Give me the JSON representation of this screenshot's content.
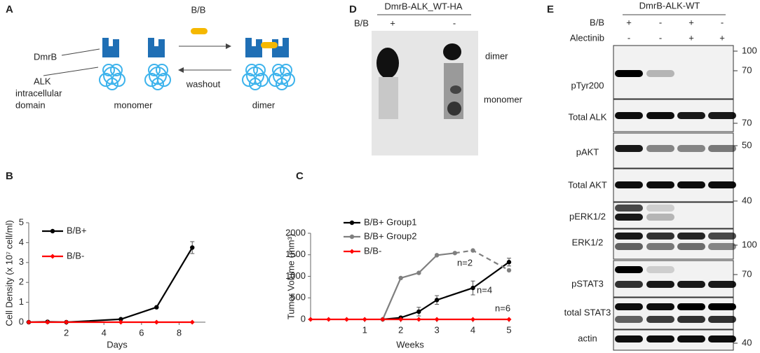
{
  "panel_a": {
    "letter": "A",
    "ligand": "B/B",
    "dmrb": "DmrB",
    "alk_lines": [
      "ALK",
      "intracellular",
      "domain"
    ],
    "monomer": "monomer",
    "washout": "washout",
    "dimer": "dimer"
  },
  "panel_d": {
    "letter": "D",
    "title": "DmrB-ALK_WT-HA",
    "row_label": "B/B",
    "lanes": [
      "+",
      "-"
    ],
    "bands": [
      "dimer",
      "monomer"
    ]
  },
  "panel_e": {
    "letter": "E",
    "title": "DmrB-ALK-WT",
    "conditions": [
      {
        "label": "B/B",
        "signs": [
          "+",
          "-",
          "+",
          "-"
        ]
      },
      {
        "label": "Alectinib",
        "signs": [
          "-",
          "-",
          "+",
          "+"
        ]
      }
    ],
    "blots": [
      "pTyr200",
      "Total ALK",
      "pAKT",
      "Total AKT",
      "pERK1/2",
      "ERK1/2",
      "pSTAT3",
      "total STAT3",
      "actin"
    ],
    "markers": [
      100,
      70,
      70,
      50,
      40,
      100,
      70,
      40
    ]
  },
  "chart_data": [
    {
      "type": "line",
      "panel": "B",
      "xlabel": "Days",
      "ylabel": "Cell Density  (x 10⁷ cell/ml)",
      "x": [
        0,
        1,
        2,
        4.9,
        6.8,
        8.7
      ],
      "xlim": [
        0,
        9.4
      ],
      "xticks": [
        2,
        4,
        6,
        8
      ],
      "ylim": [
        0,
        5
      ],
      "yticks": [
        0,
        1,
        2,
        3,
        4,
        5
      ],
      "series": [
        {
          "name": "B/B+",
          "color": "#000000",
          "marker": "circle",
          "values": [
            0,
            0.02,
            0,
            0.15,
            0.75,
            3.75
          ],
          "errors": [
            null,
            null,
            null,
            null,
            null,
            0.3
          ]
        },
        {
          "name": "B/B-",
          "color": "#ff0000",
          "marker": "diamond",
          "values": [
            0,
            0,
            0,
            0,
            0,
            0
          ]
        }
      ]
    },
    {
      "type": "line",
      "panel": "C",
      "xlabel": "Weeks",
      "ylabel": "Tumor Volume (mm³)",
      "xlim": [
        -0.5,
        5
      ],
      "xticks": [
        1,
        2,
        3,
        4,
        5
      ],
      "ylim": [
        0,
        2000
      ],
      "yticks": [
        0,
        500,
        1000,
        1500,
        2000
      ],
      "annotations": [
        "n=2",
        "n=4",
        "n=6"
      ],
      "series": [
        {
          "name": "B/B+ Group1",
          "color": "#000000",
          "marker": "circle",
          "x": [
            1.5,
            2,
            2.5,
            3,
            4,
            5
          ],
          "values": [
            0,
            40,
            180,
            450,
            730,
            1330
          ],
          "errors": [
            null,
            null,
            100,
            100,
            160,
            90
          ]
        },
        {
          "name": "B/B+ Group2",
          "color": "#7f7f7f",
          "marker": "circle",
          "x": [
            1.5,
            2,
            2.5,
            3,
            3.5,
            4,
            5
          ],
          "values": [
            0,
            960,
            1080,
            1490,
            1540,
            1600,
            1140
          ],
          "dashed_from": 4
        },
        {
          "name": "B/B-",
          "color": "#ff0000",
          "marker": "diamond",
          "x": [
            -0.5,
            0,
            0.5,
            1,
            1.5,
            2,
            2.5,
            3,
            4,
            5
          ],
          "values": [
            0,
            0,
            0,
            0,
            0,
            0,
            0,
            0,
            0,
            0
          ]
        }
      ]
    }
  ]
}
